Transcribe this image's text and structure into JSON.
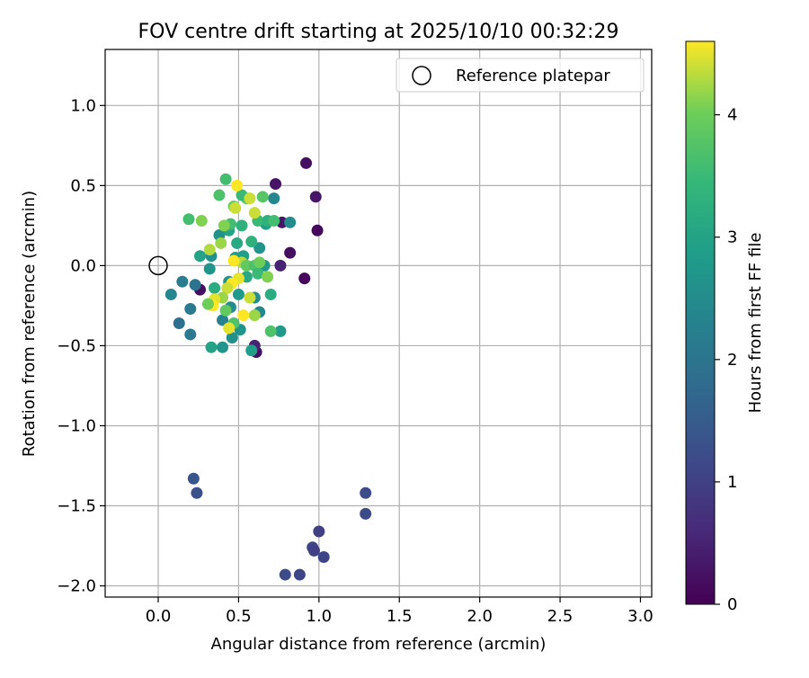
{
  "chart_data": {
    "type": "scatter",
    "title": "FOV centre drift starting at 2025/10/10 00:32:29",
    "xlabel": "Angular distance from reference (arcmin)",
    "ylabel": "Rotation from reference (arcmin)",
    "xlim": [
      -0.33,
      3.07
    ],
    "ylim": [
      -2.07,
      1.35
    ],
    "x_ticks": [
      0.0,
      0.5,
      1.0,
      1.5,
      2.0,
      2.5,
      3.0
    ],
    "x_tick_labels": [
      "0.0",
      "0.5",
      "1.0",
      "1.5",
      "2.0",
      "2.5",
      "3.0"
    ],
    "y_ticks": [
      1.0,
      0.5,
      0.0,
      -0.5,
      -1.0,
      -1.5,
      -2.0
    ],
    "y_tick_labels": [
      "1.0",
      "0.5",
      "0.0",
      "−0.5",
      "−1.0",
      "−1.5",
      "−2.0"
    ],
    "grid": true,
    "colorbar": {
      "label": "Hours from first FF file",
      "range": [
        0,
        4.6
      ],
      "ticks": [
        0,
        1,
        2,
        3,
        4
      ],
      "tick_labels": [
        "0",
        "1",
        "2",
        "3",
        "4"
      ],
      "colormap": "viridis"
    },
    "legend": {
      "placement": "top-right",
      "entries": [
        "Reference platepar"
      ]
    },
    "reference_marker": {
      "x": 0.0,
      "y": 0.0
    },
    "points": [
      {
        "x": 0.92,
        "y": 0.64,
        "h": 0.2
      },
      {
        "x": 0.73,
        "y": 0.51,
        "h": 0.3
      },
      {
        "x": 0.98,
        "y": 0.43,
        "h": 0.3
      },
      {
        "x": 0.99,
        "y": 0.22,
        "h": 0.1
      },
      {
        "x": 0.82,
        "y": 0.08,
        "h": 0.2
      },
      {
        "x": 0.76,
        "y": 0.0,
        "h": 0.5
      },
      {
        "x": 0.91,
        "y": -0.08,
        "h": 0.1
      },
      {
        "x": 0.61,
        "y": -0.54,
        "h": 0.2
      },
      {
        "x": 0.6,
        "y": -0.5,
        "h": 0.5
      },
      {
        "x": 0.26,
        "y": -0.15,
        "h": 0.2
      },
      {
        "x": 0.77,
        "y": 0.27,
        "h": 0.3
      },
      {
        "x": 0.72,
        "y": 0.42,
        "h": 2.4
      },
      {
        "x": 0.82,
        "y": 0.27,
        "h": 2.5
      },
      {
        "x": 0.67,
        "y": 0.26,
        "h": 2.9
      },
      {
        "x": 0.66,
        "y": 0.0,
        "h": 2.8
      },
      {
        "x": 0.7,
        "y": -0.18,
        "h": 3.2
      },
      {
        "x": 0.76,
        "y": -0.41,
        "h": 2.8
      },
      {
        "x": 0.63,
        "y": -0.29,
        "h": 2.4
      },
      {
        "x": 0.6,
        "y": -0.2,
        "h": 2.5
      },
      {
        "x": 0.63,
        "y": 0.11,
        "h": 2.7
      },
      {
        "x": 0.58,
        "y": -0.53,
        "h": 2.9
      },
      {
        "x": 0.51,
        "y": -0.4,
        "h": 2.7
      },
      {
        "x": 0.46,
        "y": -0.45,
        "h": 2.6
      },
      {
        "x": 0.4,
        "y": -0.51,
        "h": 2.7
      },
      {
        "x": 0.33,
        "y": -0.51,
        "h": 3.0
      },
      {
        "x": 0.2,
        "y": -0.43,
        "h": 2.1
      },
      {
        "x": 0.13,
        "y": -0.36,
        "h": 1.9
      },
      {
        "x": 0.2,
        "y": -0.27,
        "h": 2.1
      },
      {
        "x": 0.08,
        "y": -0.18,
        "h": 2.4
      },
      {
        "x": 0.15,
        "y": -0.1,
        "h": 2.2
      },
      {
        "x": 0.23,
        "y": -0.12,
        "h": 2.0
      },
      {
        "x": 0.4,
        "y": -0.34,
        "h": 2.3
      },
      {
        "x": 0.45,
        "y": -0.26,
        "h": 2.5
      },
      {
        "x": 0.44,
        "y": -0.1,
        "h": 2.6
      },
      {
        "x": 0.48,
        "y": 0.05,
        "h": 2.8
      },
      {
        "x": 0.44,
        "y": 0.22,
        "h": 3.0
      },
      {
        "x": 0.38,
        "y": 0.19,
        "h": 2.6
      },
      {
        "x": 0.33,
        "y": 0.06,
        "h": 2.6
      },
      {
        "x": 0.26,
        "y": 0.06,
        "h": 3.0
      },
      {
        "x": 0.32,
        "y": -0.02,
        "h": 2.7
      },
      {
        "x": 0.35,
        "y": -0.14,
        "h": 3.2
      },
      {
        "x": 0.5,
        "y": -0.18,
        "h": 2.8
      },
      {
        "x": 0.55,
        "y": -0.07,
        "h": 3.1
      },
      {
        "x": 0.53,
        "y": 0.06,
        "h": 2.9
      },
      {
        "x": 0.49,
        "y": 0.14,
        "h": 3.1
      },
      {
        "x": 0.52,
        "y": 0.25,
        "h": 3.3
      },
      {
        "x": 0.58,
        "y": 0.15,
        "h": 3.3
      },
      {
        "x": 0.62,
        "y": 0.28,
        "h": 3.5
      },
      {
        "x": 0.68,
        "y": 0.28,
        "h": 3.3
      },
      {
        "x": 0.72,
        "y": 0.28,
        "h": 3.6
      },
      {
        "x": 0.65,
        "y": 0.43,
        "h": 3.8
      },
      {
        "x": 0.55,
        "y": 0.42,
        "h": 3.9
      },
      {
        "x": 0.52,
        "y": 0.44,
        "h": 3.5
      },
      {
        "x": 0.47,
        "y": 0.37,
        "h": 4.0
      },
      {
        "x": 0.42,
        "y": 0.54,
        "h": 3.6
      },
      {
        "x": 0.38,
        "y": 0.44,
        "h": 3.7
      },
      {
        "x": 0.45,
        "y": 0.26,
        "h": 3.6
      },
      {
        "x": 0.41,
        "y": 0.25,
        "h": 4.1
      },
      {
        "x": 0.39,
        "y": 0.14,
        "h": 4.2
      },
      {
        "x": 0.32,
        "y": 0.1,
        "h": 4.3
      },
      {
        "x": 0.27,
        "y": 0.28,
        "h": 4.1
      },
      {
        "x": 0.19,
        "y": 0.29,
        "h": 3.6
      },
      {
        "x": 0.48,
        "y": 0.36,
        "h": 4.4
      },
      {
        "x": 0.49,
        "y": 0.5,
        "h": 4.6
      },
      {
        "x": 0.6,
        "y": 0.33,
        "h": 4.4
      },
      {
        "x": 0.57,
        "y": 0.42,
        "h": 4.4
      },
      {
        "x": 0.52,
        "y": 0.02,
        "h": 4.3
      },
      {
        "x": 0.55,
        "y": 0.0,
        "h": 3.9
      },
      {
        "x": 0.6,
        "y": 0.0,
        "h": 3.7
      },
      {
        "x": 0.62,
        "y": -0.05,
        "h": 3.5
      },
      {
        "x": 0.63,
        "y": 0.02,
        "h": 4.0
      },
      {
        "x": 0.68,
        "y": -0.07,
        "h": 4.1
      },
      {
        "x": 0.47,
        "y": 0.03,
        "h": 4.6
      },
      {
        "x": 0.5,
        "y": -0.08,
        "h": 4.5
      },
      {
        "x": 0.46,
        "y": -0.11,
        "h": 4.6
      },
      {
        "x": 0.43,
        "y": -0.14,
        "h": 4.4
      },
      {
        "x": 0.4,
        "y": -0.2,
        "h": 4.2
      },
      {
        "x": 0.35,
        "y": -0.21,
        "h": 4.5
      },
      {
        "x": 0.34,
        "y": -0.25,
        "h": 4.6
      },
      {
        "x": 0.31,
        "y": -0.24,
        "h": 4.0
      },
      {
        "x": 0.42,
        "y": -0.28,
        "h": 3.9
      },
      {
        "x": 0.57,
        "y": -0.2,
        "h": 4.4
      },
      {
        "x": 0.6,
        "y": -0.31,
        "h": 4.2
      },
      {
        "x": 0.53,
        "y": -0.31,
        "h": 4.6
      },
      {
        "x": 0.47,
        "y": -0.36,
        "h": 3.7
      },
      {
        "x": 0.44,
        "y": -0.39,
        "h": 4.5
      },
      {
        "x": 0.7,
        "y": -0.41,
        "h": 3.7
      },
      {
        "x": 0.22,
        "y": -1.33,
        "h": 1.4
      },
      {
        "x": 0.24,
        "y": -1.42,
        "h": 1.3
      },
      {
        "x": 1.29,
        "y": -1.42,
        "h": 1.2
      },
      {
        "x": 1.29,
        "y": -1.55,
        "h": 1.2
      },
      {
        "x": 1.0,
        "y": -1.66,
        "h": 1.0
      },
      {
        "x": 0.96,
        "y": -1.76,
        "h": 1.1
      },
      {
        "x": 0.97,
        "y": -1.78,
        "h": 1.0
      },
      {
        "x": 1.03,
        "y": -1.82,
        "h": 1.1
      },
      {
        "x": 0.79,
        "y": -1.93,
        "h": 1.2
      },
      {
        "x": 0.88,
        "y": -1.93,
        "h": 1.1
      }
    ]
  }
}
